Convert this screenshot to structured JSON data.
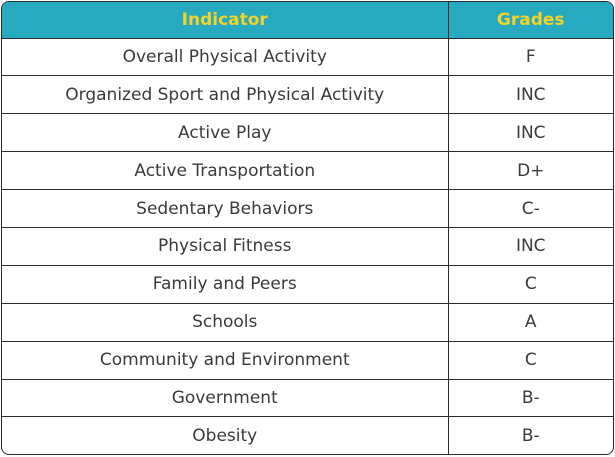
{
  "table": {
    "header_bg": "#27a9bf",
    "header_text_color": "#f6d327",
    "columns": [
      "Indicator",
      "Grades"
    ],
    "rows": [
      {
        "indicator": "Overall Physical Activity",
        "grade": "F"
      },
      {
        "indicator": "Organized Sport and Physical Activity",
        "grade": "INC"
      },
      {
        "indicator": "Active Play",
        "grade": "INC"
      },
      {
        "indicator": "Active Transportation",
        "grade": "D+"
      },
      {
        "indicator": "Sedentary Behaviors",
        "grade": "C-"
      },
      {
        "indicator": "Physical Fitness",
        "grade": "INC"
      },
      {
        "indicator": "Family and Peers",
        "grade": "C"
      },
      {
        "indicator": "Schools",
        "grade": "A"
      },
      {
        "indicator": "Community and Environment",
        "grade": "C"
      },
      {
        "indicator": "Government",
        "grade": "B-"
      },
      {
        "indicator": "Obesity",
        "grade": "B-"
      }
    ]
  }
}
